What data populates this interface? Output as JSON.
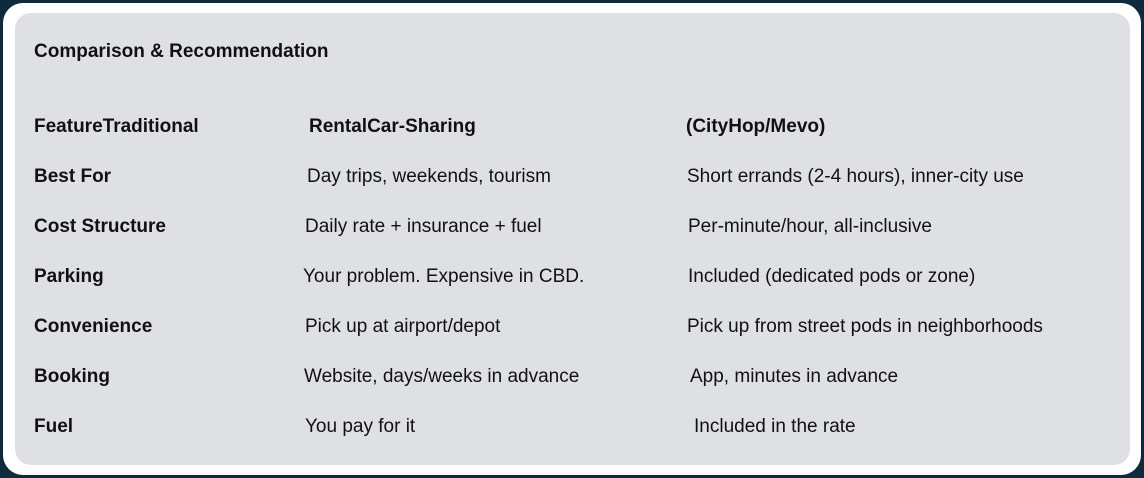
{
  "card": {
    "title": "Comparison & Recommendation"
  },
  "table": {
    "headers": [
      "FeatureTraditional",
      "RentalCar-Sharing",
      "(CityHop/Mevo)"
    ],
    "rows": [
      {
        "feature": "Best For",
        "rental": "Day trips, weekends, tourism",
        "sharing": "Short errands (2-4 hours), inner-city use"
      },
      {
        "feature": "Cost Structure",
        "rental": "Daily rate + insurance + fuel",
        "sharing": "Per-minute/hour, all-inclusive"
      },
      {
        "feature": "Parking",
        "rental": "Your problem. Expensive in CBD.",
        "sharing": "Included (dedicated pods or zone)"
      },
      {
        "feature": "Convenience",
        "rental": "Pick up at airport/depot",
        "sharing": "Pick up from street pods in neighborhoods"
      },
      {
        "feature": "Booking",
        "rental": "Website, days/weeks in advance",
        "sharing": "App, minutes in advance"
      },
      {
        "feature": "Fuel",
        "rental": "You pay for it",
        "sharing": "Included in the rate"
      }
    ]
  }
}
